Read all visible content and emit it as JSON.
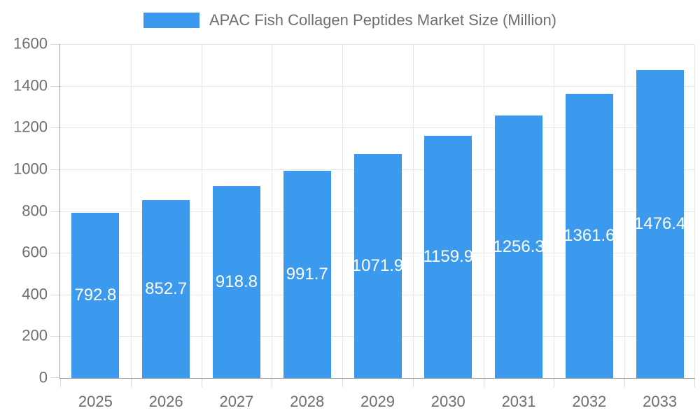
{
  "chart_data": {
    "type": "bar",
    "title": "APAC Fish Collagen Peptides Market Size (Million)",
    "legend_position": "top",
    "categories": [
      "2025",
      "2026",
      "2027",
      "2028",
      "2029",
      "2030",
      "2031",
      "2032",
      "2033"
    ],
    "series": [
      {
        "name": "APAC Fish Collagen Peptides Market Size (Million)",
        "values": [
          792.8,
          852.7,
          918.8,
          991.7,
          1071.9,
          1159.9,
          1256.3,
          1361.6,
          1476.4
        ]
      }
    ],
    "value_labels_visible": true,
    "xlabel": "",
    "ylabel": "",
    "ylim": [
      0,
      1600
    ],
    "y_ticks": [
      0,
      200,
      400,
      600,
      800,
      1000,
      1200,
      1400,
      1600
    ],
    "grid": true,
    "colors": {
      "bar": "#3B99EE",
      "grid_h": "#e6e6e6",
      "grid_v": "#e8e8e8",
      "tick": "#d9d9d9",
      "axis_line": "#9b9b9b",
      "axis_text": "#6e6e6e",
      "value_label": "#ffffff",
      "background": "#ffffff"
    }
  }
}
